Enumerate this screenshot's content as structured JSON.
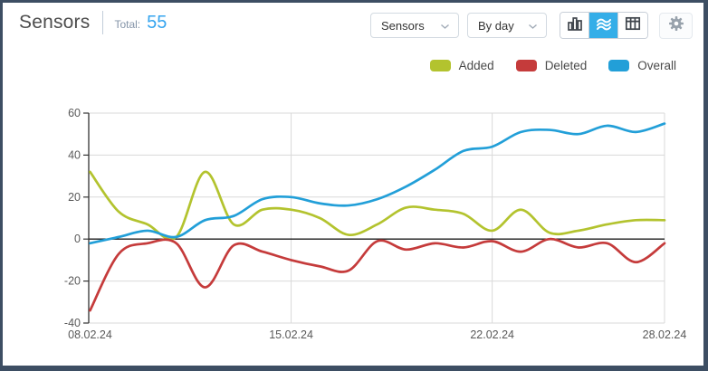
{
  "app": {
    "border_color": "#3d4e63",
    "background": "#ffffff"
  },
  "header": {
    "title": "Sensors",
    "total_label": "Total:",
    "total_value": "55"
  },
  "controls": {
    "entity_select": {
      "value": "Sensors",
      "icon": "chevron-down-icon"
    },
    "period_select": {
      "value": "By day",
      "icon": "chevron-down-icon"
    },
    "view_switcher": [
      {
        "id": "bar-view",
        "icon": "bar-chart-icon",
        "active": false
      },
      {
        "id": "line-view",
        "icon": "line-chart-icon",
        "active": true
      },
      {
        "id": "table-view",
        "icon": "table-icon",
        "active": false
      }
    ],
    "active_view_color": "#35aee8",
    "settings_button": {
      "icon": "gear-icon"
    }
  },
  "legend": {
    "items": [
      {
        "label": "Added",
        "color": "#b3c32e"
      },
      {
        "label": "Deleted",
        "color": "#c53b3b"
      },
      {
        "label": "Overall",
        "color": "#229fd8"
      }
    ]
  },
  "chart_data": {
    "type": "line",
    "title": "",
    "xlabel": "",
    "ylabel": "",
    "ylim": [
      -40,
      60
    ],
    "y_ticks": [
      60,
      40,
      20,
      0,
      -20,
      -40
    ],
    "x_ticks": [
      {
        "index": 0,
        "label": "08.02.24"
      },
      {
        "index": 7,
        "label": "15.02.24"
      },
      {
        "index": 14,
        "label": "22.02.24"
      },
      {
        "index": 20,
        "label": "28.02.24"
      }
    ],
    "num_points": 21,
    "grid": true,
    "legend_position": "top-right",
    "series": [
      {
        "name": "Added",
        "color": "#b3c32e",
        "values": [
          32,
          13,
          7,
          1,
          32,
          7,
          14,
          14,
          10,
          2,
          7,
          15,
          14,
          12,
          4,
          14,
          3,
          4,
          7,
          9,
          9
        ]
      },
      {
        "name": "Deleted",
        "color": "#c53b3b",
        "values": [
          -34,
          -7,
          -2,
          -2,
          -23,
          -3,
          -6,
          -10,
          -13,
          -15,
          -1,
          -5,
          -2,
          -4,
          -1,
          -6,
          0,
          -4,
          -2,
          -11,
          -2
        ]
      },
      {
        "name": "Overall",
        "color": "#229fd8",
        "values": [
          -2,
          1,
          4,
          1,
          9,
          11,
          19,
          20,
          17,
          16,
          19,
          25,
          33,
          42,
          44,
          51,
          52,
          50,
          54,
          51,
          55
        ]
      }
    ]
  }
}
